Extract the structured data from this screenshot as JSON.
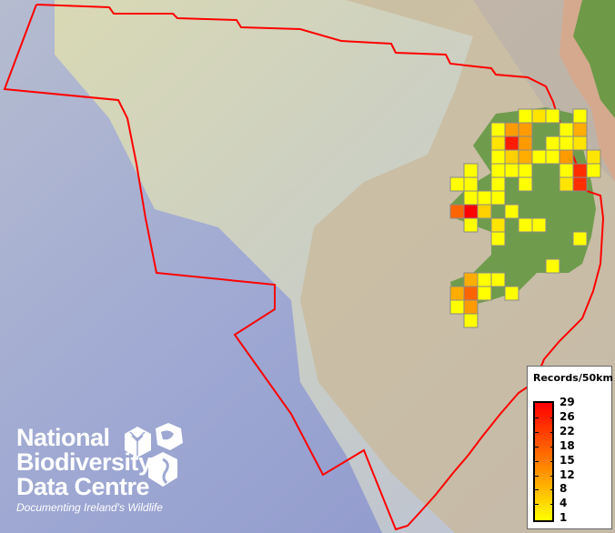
{
  "legend": {
    "title": "Records/50km",
    "labels": [
      "29",
      "26",
      "22",
      "18",
      "15",
      "12",
      "8",
      "4",
      "1"
    ],
    "color_ramp": [
      "#ffff00",
      "#ff8800",
      "#ff0000"
    ]
  },
  "logo": {
    "line1": "National",
    "line2": "Biodiversity",
    "line3": "Data Centre",
    "tagline": "Documenting Ireland's Wildlife"
  },
  "boundary_color": "#ff0000",
  "grid_records": [
    1,
    4,
    1,
    1,
    1,
    12,
    12,
    1,
    10,
    4,
    26,
    12,
    1,
    1,
    4,
    1,
    6,
    10,
    1,
    1,
    12,
    4,
    1,
    1,
    1,
    1,
    1,
    24,
    1,
    1,
    1,
    1,
    1,
    4,
    24,
    1,
    1,
    1,
    18,
    29,
    6,
    1,
    1,
    4,
    1,
    1,
    1,
    1,
    1,
    10,
    1,
    1,
    10,
    18,
    1,
    1,
    1,
    12,
    1
  ]
}
